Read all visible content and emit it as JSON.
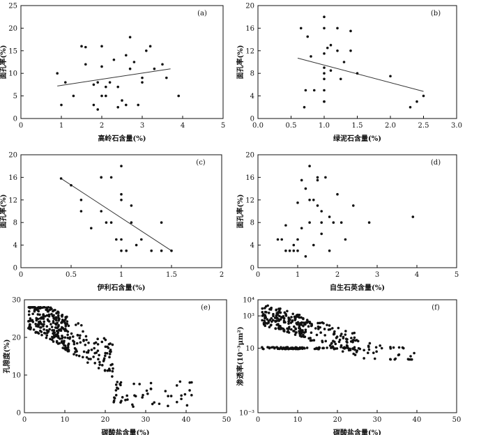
{
  "chart_data": [
    {
      "id": "a",
      "tag": "(a)",
      "type": "scatter",
      "xlabel": "高岭石含量(%)",
      "ylabel": "面孔率(%)",
      "xlim": [
        0,
        5
      ],
      "ylim": [
        0,
        25
      ],
      "xticks": [
        0,
        1,
        2,
        3,
        4,
        5
      ],
      "yticks": [
        0,
        5,
        10,
        15,
        20,
        25
      ],
      "fit": [
        [
          0.9,
          7.2
        ],
        [
          3.7,
          11.0
        ]
      ],
      "points": [
        [
          0.9,
          10
        ],
        [
          1.0,
          3
        ],
        [
          1.1,
          8
        ],
        [
          1.3,
          5
        ],
        [
          1.5,
          16
        ],
        [
          1.6,
          15.8
        ],
        [
          1.6,
          12
        ],
        [
          1.8,
          7.5
        ],
        [
          1.8,
          3
        ],
        [
          1.9,
          2
        ],
        [
          1.9,
          8
        ],
        [
          2.0,
          16
        ],
        [
          2.0,
          11.5
        ],
        [
          2.0,
          5
        ],
        [
          2.1,
          5
        ],
        [
          2.1,
          7
        ],
        [
          2.2,
          8
        ],
        [
          2.3,
          13
        ],
        [
          2.4,
          2.5
        ],
        [
          2.4,
          7
        ],
        [
          2.5,
          4
        ],
        [
          2.6,
          3
        ],
        [
          2.6,
          14
        ],
        [
          2.7,
          11
        ],
        [
          2.7,
          18
        ],
        [
          2.8,
          12.5
        ],
        [
          2.9,
          3
        ],
        [
          3.0,
          9
        ],
        [
          3.0,
          8
        ],
        [
          3.1,
          15
        ],
        [
          3.2,
          16
        ],
        [
          3.3,
          11
        ],
        [
          3.5,
          12
        ],
        [
          3.6,
          9
        ],
        [
          3.9,
          5
        ]
      ]
    },
    {
      "id": "b",
      "tag": "(b)",
      "type": "scatter",
      "xlabel": "绿泥石含量(%)",
      "ylabel": "面孔率(%)",
      "xlim": [
        0,
        3
      ],
      "ylim": [
        0,
        20
      ],
      "xticks": [
        "0.0",
        "0.5",
        "1.0",
        "1.5",
        "2.0",
        "2.5",
        "3.0"
      ],
      "yticks": [
        0,
        4,
        8,
        12,
        16,
        20
      ],
      "fit": [
        [
          0.6,
          10.7
        ],
        [
          2.5,
          4.8
        ]
      ],
      "points": [
        [
          0.65,
          16
        ],
        [
          0.7,
          2
        ],
        [
          0.72,
          5
        ],
        [
          0.75,
          14.5
        ],
        [
          0.8,
          11
        ],
        [
          0.85,
          5
        ],
        [
          1.0,
          18
        ],
        [
          1.0,
          16
        ],
        [
          1.0,
          11.5
        ],
        [
          1.0,
          9
        ],
        [
          1.0,
          8
        ],
        [
          1.0,
          7
        ],
        [
          1.0,
          5
        ],
        [
          1.0,
          3
        ],
        [
          1.0,
          3
        ],
        [
          1.05,
          12.5
        ],
        [
          1.1,
          8.5
        ],
        [
          1.1,
          13
        ],
        [
          1.2,
          16
        ],
        [
          1.2,
          12
        ],
        [
          1.25,
          7
        ],
        [
          1.3,
          10
        ],
        [
          1.4,
          15.5
        ],
        [
          1.4,
          12
        ],
        [
          1.5,
          8
        ],
        [
          2.0,
          7.5
        ],
        [
          2.3,
          2
        ],
        [
          2.4,
          3
        ],
        [
          2.5,
          4
        ]
      ]
    },
    {
      "id": "c",
      "tag": "(c)",
      "type": "scatter",
      "xlabel": "伊利石含量(%)",
      "ylabel": "面孔率(%)",
      "xlim": [
        0,
        2
      ],
      "ylim": [
        0,
        20
      ],
      "xticks": [
        0,
        0.5,
        1,
        1.5,
        2
      ],
      "yticks": [
        0,
        4,
        8,
        12,
        16,
        20
      ],
      "fit": [
        [
          0.4,
          15.8
        ],
        [
          1.5,
          3.0
        ]
      ],
      "points": [
        [
          0.4,
          15.8
        ],
        [
          0.5,
          14.6
        ],
        [
          0.6,
          12
        ],
        [
          0.6,
          10
        ],
        [
          0.7,
          7
        ],
        [
          0.8,
          16
        ],
        [
          0.8,
          16
        ],
        [
          0.8,
          10
        ],
        [
          0.85,
          8
        ],
        [
          0.9,
          8
        ],
        [
          0.9,
          16
        ],
        [
          0.95,
          5
        ],
        [
          1.0,
          18
        ],
        [
          1.0,
          13
        ],
        [
          1.0,
          12
        ],
        [
          1.0,
          3
        ],
        [
          1.0,
          5
        ],
        [
          1.05,
          3
        ],
        [
          1.1,
          11
        ],
        [
          1.1,
          8
        ],
        [
          1.15,
          4
        ],
        [
          1.2,
          5
        ],
        [
          1.3,
          3
        ],
        [
          1.4,
          8
        ],
        [
          1.4,
          3
        ],
        [
          1.5,
          3
        ]
      ]
    },
    {
      "id": "d",
      "tag": "(d)",
      "type": "scatter",
      "xlabel": "自生石英含量(%)",
      "ylabel": "面孔率(%)",
      "xlim": [
        0,
        5
      ],
      "ylim": [
        0,
        20
      ],
      "xticks": [
        0,
        1,
        2,
        3,
        4,
        5
      ],
      "yticks": [
        0,
        4,
        8,
        12,
        16,
        20
      ],
      "fit": [],
      "points": [
        [
          0.5,
          5
        ],
        [
          0.6,
          5
        ],
        [
          0.7,
          7.5
        ],
        [
          0.7,
          3
        ],
        [
          0.8,
          3
        ],
        [
          0.9,
          4
        ],
        [
          0.9,
          3
        ],
        [
          1.0,
          11.5
        ],
        [
          1.0,
          3
        ],
        [
          1.0,
          5
        ],
        [
          1.1,
          15.5
        ],
        [
          1.1,
          7
        ],
        [
          1.2,
          2
        ],
        [
          1.2,
          14
        ],
        [
          1.3,
          12
        ],
        [
          1.3,
          18
        ],
        [
          1.3,
          8
        ],
        [
          1.4,
          12
        ],
        [
          1.4,
          4
        ],
        [
          1.5,
          16
        ],
        [
          1.5,
          15.5
        ],
        [
          1.5,
          11
        ],
        [
          1.6,
          10
        ],
        [
          1.6,
          8
        ],
        [
          1.6,
          6
        ],
        [
          1.7,
          16
        ],
        [
          1.8,
          9
        ],
        [
          1.8,
          3
        ],
        [
          1.9,
          8
        ],
        [
          2.0,
          13
        ],
        [
          2.1,
          8
        ],
        [
          2.2,
          5
        ],
        [
          2.4,
          11
        ],
        [
          2.8,
          8
        ],
        [
          3.9,
          9
        ]
      ]
    },
    {
      "id": "e",
      "tag": "(e)",
      "type": "scatter",
      "xlabel": "碳酸盐含量(%)",
      "ylabel": "孔隙度(%)",
      "xlim": [
        0,
        50
      ],
      "ylim": [
        0,
        30
      ],
      "xticks": [
        0,
        10,
        20,
        30,
        40,
        50
      ],
      "yticks": [
        0,
        10,
        20,
        30
      ],
      "fit": [],
      "generated": true,
      "n": 380
    },
    {
      "id": "f",
      "tag": "(f)",
      "type": "scatter",
      "xlabel": "碳酸盐含量(%)",
      "ylabel": "渗透率(10⁻³μm²)",
      "xlim": [
        0,
        50
      ],
      "ylim": [
        -3,
        4
      ],
      "yscale": "log",
      "xticks": [
        0,
        10,
        20,
        30,
        40,
        50
      ],
      "yticks": [
        "10⁻³",
        "10",
        "10³",
        "10⁴"
      ],
      "ytick_values": [
        -3,
        1,
        3,
        4
      ],
      "fit": [],
      "generated": true,
      "n": 400
    }
  ]
}
